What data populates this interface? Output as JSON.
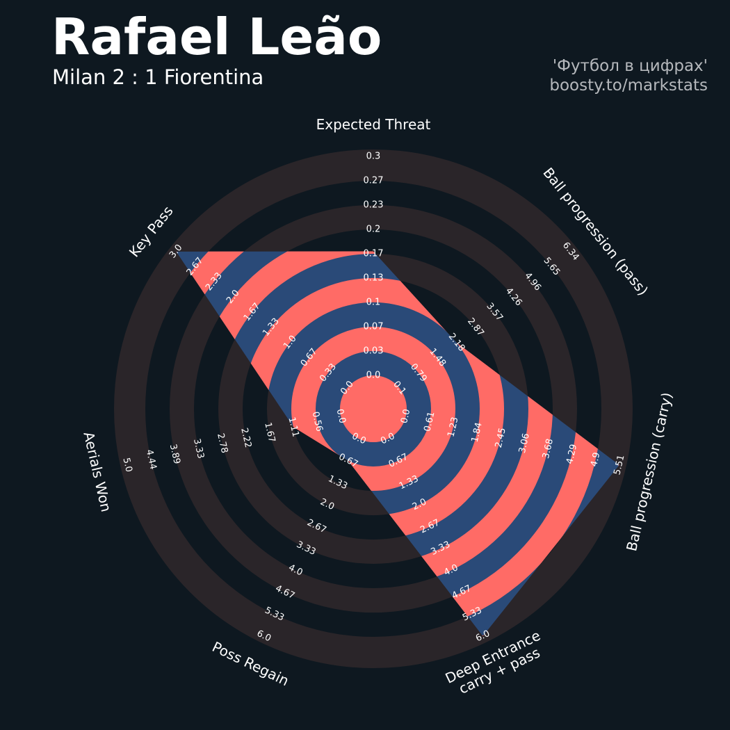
{
  "header": {
    "title": "Rafael Leão",
    "subtitle": "Milan 2 : 1 Fiorentina",
    "credit_line1": "'Футбол в цифрах'",
    "credit_line2": "boosty.to/markstats"
  },
  "colors": {
    "background": "#0e1820",
    "ring": "#2a2529",
    "fill_main": "#2a4a78",
    "fill_ring": "#ff6b66",
    "text": "#ffffff"
  },
  "chart_data": {
    "type": "radar",
    "title": "",
    "params": [
      {
        "name": "Expected Threat",
        "lines": [
          "Expected Threat"
        ],
        "ticks": [
          "0.0",
          "0.03",
          "0.07",
          "0.1",
          "0.13",
          "0.17",
          "0.2",
          "0.23",
          "0.27",
          "0.3"
        ],
        "value": 0.17
      },
      {
        "name": "Ball progression (pass)",
        "lines": [
          "Ball progression (pass)"
        ],
        "ticks": [
          "0.1",
          "0.79",
          "1.48",
          "2.18",
          "2.87",
          "3.57",
          "4.26",
          "4.96",
          "5.65",
          "6.34"
        ],
        "value": 2.18
      },
      {
        "name": "Ball progression (carry)",
        "lines": [
          "Ball progression (carry)"
        ],
        "ticks": [
          "0.0",
          "0.61",
          "1.23",
          "1.84",
          "2.45",
          "3.06",
          "3.68",
          "4.29",
          "4.9",
          "5.51"
        ],
        "value": 5.51
      },
      {
        "name": "Deep Entrance carry + pass",
        "lines": [
          "Deep Entrance",
          "carry + pass"
        ],
        "ticks": [
          "0.0",
          "0.67",
          "1.33",
          "2.0",
          "2.67",
          "3.33",
          "4.0",
          "4.67",
          "5.33",
          "6.0"
        ],
        "value": 6.0
      },
      {
        "name": "Poss Regain",
        "lines": [
          "Poss Regain"
        ],
        "ticks": [
          "0.0",
          "0.67",
          "1.33",
          "2.0",
          "2.67",
          "3.33",
          "4.0",
          "4.67",
          "5.33",
          "6.0"
        ],
        "value": 0.67
      },
      {
        "name": "Aerials Won",
        "lines": [
          "Aerials Won"
        ],
        "ticks": [
          "0.0",
          "0.56",
          "1.11",
          "1.67",
          "2.22",
          "2.78",
          "3.33",
          "3.89",
          "4.44",
          "5.0"
        ],
        "value": 1.11
      },
      {
        "name": "Key Pass",
        "lines": [
          "Key Pass"
        ],
        "ticks": [
          "0.0",
          "0.33",
          "0.67",
          "1.0",
          "1.33",
          "1.67",
          "2.0",
          "2.33",
          "2.67",
          "3.0"
        ],
        "value": 3.0
      }
    ]
  }
}
